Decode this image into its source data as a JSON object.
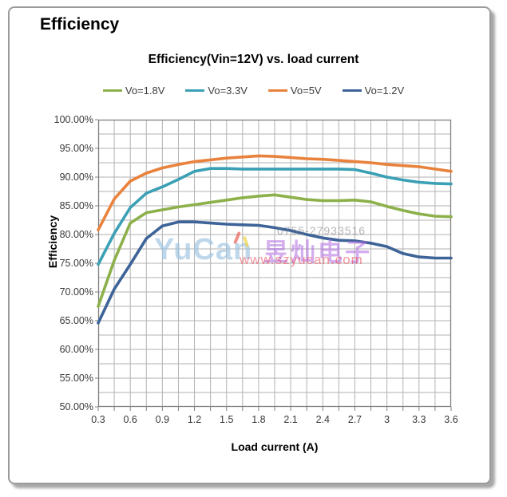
{
  "page": {
    "heading": "Efficiency"
  },
  "watermark": {
    "brand": "YuCan",
    "cn": "昱灿电子",
    "url": "www.szyucan.com",
    "phone": "0755-27933516"
  },
  "chart_data": {
    "type": "line",
    "title": "Efficiency(Vin=12V) vs. load current",
    "xlabel": "Load current (A)",
    "ylabel": "Efficiency",
    "xlim": [
      0.3,
      3.6
    ],
    "ylim": [
      50,
      100
    ],
    "x_minor_step": 0.15,
    "y_minor_step": 2.5,
    "grid": true,
    "legend_position": "top",
    "x_ticks": [
      "0.3",
      "0.6",
      "0.9",
      "1.2",
      "1.5",
      "1.8",
      "2.1",
      "2.4",
      "2.7",
      "3",
      "3.3",
      "3.6"
    ],
    "x_tick_values": [
      0.3,
      0.6,
      0.9,
      1.2,
      1.5,
      1.8,
      2.1,
      2.4,
      2.7,
      3.0,
      3.3,
      3.6
    ],
    "y_ticks": [
      "100.00%",
      "95.00%",
      "90.00%",
      "85.00%",
      "80.00%",
      "75.00%",
      "70.00%",
      "65.00%",
      "60.00%",
      "55.00%",
      "50.00%"
    ],
    "y_tick_values": [
      100,
      95,
      90,
      85,
      80,
      75,
      70,
      65,
      60,
      55,
      50
    ],
    "x": [
      0.3,
      0.45,
      0.6,
      0.75,
      0.9,
      1.05,
      1.2,
      1.35,
      1.5,
      1.65,
      1.8,
      1.95,
      2.1,
      2.25,
      2.4,
      2.55,
      2.7,
      2.85,
      3.0,
      3.15,
      3.3,
      3.45,
      3.6
    ],
    "series": [
      {
        "name": "Vo=1.8V",
        "color": "#8CB04A",
        "values": [
          67.5,
          75.5,
          82.0,
          83.8,
          84.3,
          84.8,
          85.2,
          85.6,
          86.0,
          86.4,
          86.7,
          86.9,
          86.5,
          86.1,
          85.9,
          85.9,
          86.0,
          85.7,
          84.9,
          84.2,
          83.6,
          83.2,
          83.1
        ]
      },
      {
        "name": "Vo=3.3V",
        "color": "#3BA0B5",
        "values": [
          74.8,
          80.2,
          84.7,
          87.2,
          88.3,
          89.6,
          91.0,
          91.5,
          91.5,
          91.4,
          91.4,
          91.4,
          91.4,
          91.4,
          91.4,
          91.4,
          91.3,
          90.7,
          90.0,
          89.5,
          89.1,
          88.9,
          88.8
        ]
      },
      {
        "name": "Vo=5V",
        "color": "#E8823C",
        "values": [
          80.8,
          86.2,
          89.3,
          90.7,
          91.6,
          92.2,
          92.7,
          93.0,
          93.3,
          93.5,
          93.7,
          93.6,
          93.4,
          93.2,
          93.1,
          92.9,
          92.7,
          92.5,
          92.2,
          92.0,
          91.8,
          91.4,
          91.0
        ]
      },
      {
        "name": "Vo=1.2V",
        "color": "#3D6398",
        "values": [
          64.6,
          70.5,
          74.8,
          79.3,
          81.5,
          82.2,
          82.2,
          82.0,
          81.8,
          81.7,
          81.6,
          81.2,
          80.7,
          80.0,
          79.4,
          79.0,
          78.9,
          78.5,
          77.9,
          76.7,
          76.1,
          75.9,
          75.9
        ]
      }
    ],
    "grid_color": "#b2b2b2",
    "border_color": "#7f7f7f"
  }
}
